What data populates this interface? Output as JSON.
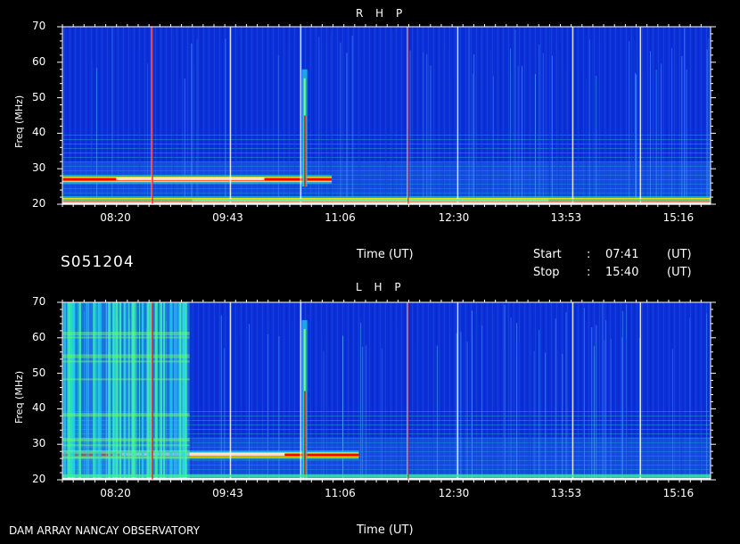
{
  "footer": {
    "array_label": "DAM ARRAY   NANCAY OBSERVATORY"
  },
  "observation": {
    "id": "S051204",
    "start_label": "Start",
    "start_sep": ":",
    "start_time": "07:41",
    "start_unit": "(UT)",
    "stop_label": "Stop",
    "stop_sep": ":",
    "stop_time": "15:40",
    "stop_unit": "(UT)"
  },
  "chart_data": [
    {
      "type": "heatmap",
      "title": "R H P",
      "xlabel": "Time (UT)",
      "ylabel": "Freq (MHz)",
      "xlim": [
        "07:41",
        "15:40"
      ],
      "ylim": [
        20,
        70
      ],
      "x_ticks": [
        "08:20",
        "09:43",
        "11:06",
        "12:30",
        "13:53",
        "15:16"
      ],
      "y_ticks": [
        20,
        30,
        40,
        50,
        60,
        70
      ],
      "colors": {
        "background": "#0b2fd8",
        "mid": "#19c8e0",
        "high": "#ffe400",
        "peak": "#ff0000",
        "saturated": "#ffffff"
      },
      "features": [
        {
          "kind": "emission_band",
          "freq_mhz": 27,
          "from": "07:41",
          "to": "11:00"
        },
        {
          "kind": "emission_band",
          "freq_mhz": 21,
          "from": "07:41",
          "to": "15:40"
        },
        {
          "kind": "burst",
          "time": "10:40",
          "freq_from": 25,
          "freq_to": 58
        },
        {
          "kind": "interference_lines",
          "times": [
            "08:47",
            "09:45",
            "10:37",
            "11:56",
            "12:33",
            "13:58",
            "14:48"
          ]
        }
      ]
    },
    {
      "type": "heatmap",
      "title": "L H P",
      "xlabel": "Time (UT)",
      "ylabel": "Freq (MHz)",
      "xlim": [
        "07:41",
        "15:40"
      ],
      "ylim": [
        20,
        70
      ],
      "x_ticks": [
        "08:20",
        "09:43",
        "11:06",
        "12:30",
        "13:53",
        "15:16"
      ],
      "y_ticks": [
        20,
        30,
        40,
        50,
        60,
        70
      ],
      "colors": {
        "background": "#0b2fd8",
        "mid": "#19c8e0",
        "high": "#ffe400",
        "peak": "#ff0000",
        "saturated": "#ffffff"
      },
      "features": [
        {
          "kind": "emission_band",
          "freq_mhz": 27,
          "from": "07:41",
          "to": "11:20"
        },
        {
          "kind": "broadband_activity",
          "from": "07:41",
          "to": "09:15",
          "freq_from": 20,
          "freq_to": 70
        },
        {
          "kind": "burst",
          "time": "10:40",
          "freq_from": 20,
          "freq_to": 65
        },
        {
          "kind": "interference_lines",
          "times": [
            "09:45",
            "10:37",
            "11:56",
            "12:33",
            "13:58",
            "14:48"
          ]
        }
      ]
    }
  ]
}
